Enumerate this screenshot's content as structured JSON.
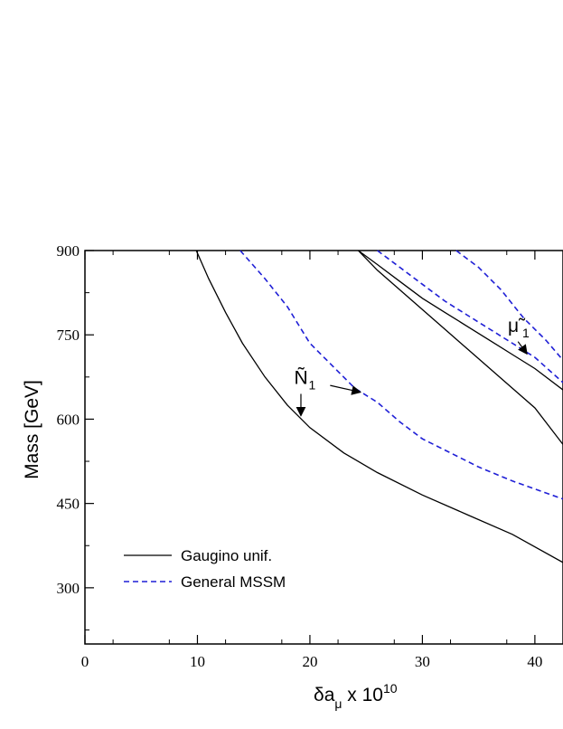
{
  "chart_data": {
    "type": "line",
    "title": "",
    "xlabel": {
      "main": "δa",
      "sub": "μ",
      "mid": " x 10",
      "sup": "10"
    },
    "ylabel": "Mass [GeV]",
    "xlim": [
      0,
      42.5
    ],
    "ylim": [
      200,
      900
    ],
    "x_ticks": [
      0,
      10,
      20,
      30,
      40
    ],
    "x_tick_labels": [
      "0",
      "10",
      "20",
      "30",
      "40"
    ],
    "y_ticks": [
      300,
      450,
      600,
      750,
      900
    ],
    "y_tick_labels": [
      "300",
      "450",
      "600",
      "750",
      "900"
    ],
    "grid": false,
    "legend_position": "lower-left",
    "series": [
      {
        "name": "Gaugino unif.",
        "color": "#000000",
        "dash": "solid",
        "points": [
          [
            9.9,
            900
          ],
          [
            11,
            850
          ],
          [
            12.5,
            790
          ],
          [
            14,
            735
          ],
          [
            16,
            675
          ],
          [
            18,
            625
          ],
          [
            20,
            585
          ],
          [
            23,
            540
          ],
          [
            26,
            505
          ],
          [
            30,
            465
          ],
          [
            34,
            430
          ],
          [
            38,
            395
          ],
          [
            42.5,
            345
          ]
        ]
      },
      {
        "name": "General MSSM",
        "color": "#1f1fd6",
        "dash": "dashed",
        "points": [
          [
            13.8,
            900
          ],
          [
            16,
            850
          ],
          [
            18,
            800
          ],
          [
            20,
            735
          ],
          [
            22,
            695
          ],
          [
            24,
            655
          ],
          [
            26,
            630
          ],
          [
            28,
            595
          ],
          [
            30,
            565
          ],
          [
            32,
            545
          ],
          [
            35,
            515
          ],
          [
            38,
            490
          ],
          [
            42.5,
            458
          ]
        ]
      },
      {
        "name": "",
        "color": "#000000",
        "dash": "solid",
        "points": [
          [
            24.3,
            900
          ],
          [
            26,
            865
          ],
          [
            28,
            830
          ],
          [
            30,
            795
          ],
          [
            32,
            760
          ],
          [
            34,
            725
          ],
          [
            36,
            690
          ],
          [
            38,
            655
          ],
          [
            40,
            620
          ],
          [
            42.5,
            555
          ]
        ]
      },
      {
        "name": "",
        "color": "#000000",
        "dash": "solid",
        "points": [
          [
            24.3,
            900
          ],
          [
            26,
            875
          ],
          [
            28,
            845
          ],
          [
            30,
            815
          ],
          [
            32,
            790
          ],
          [
            34,
            765
          ],
          [
            36,
            740
          ],
          [
            38,
            715
          ],
          [
            40,
            690
          ],
          [
            42.5,
            652
          ]
        ]
      },
      {
        "name": "",
        "color": "#1f1fd6",
        "dash": "dashed",
        "points": [
          [
            26,
            900
          ],
          [
            28,
            870
          ],
          [
            30,
            840
          ],
          [
            32,
            810
          ],
          [
            34,
            785
          ],
          [
            36,
            760
          ],
          [
            38,
            735
          ],
          [
            40,
            710
          ],
          [
            42.5,
            665
          ]
        ]
      },
      {
        "name": "",
        "color": "#1f1fd6",
        "dash": "dashed",
        "points": [
          [
            33,
            900
          ],
          [
            35,
            870
          ],
          [
            37,
            830
          ],
          [
            39,
            780
          ],
          [
            41,
            740
          ],
          [
            42.5,
            705
          ]
        ]
      }
    ],
    "annotations": [
      {
        "label": "Ñ",
        "sub": "1",
        "text_at": [
          18.6,
          663
        ],
        "arrows": [
          [
            [
              19.2,
              645
            ],
            [
              19.2,
              606
            ]
          ],
          [
            [
              21.8,
              660
            ],
            [
              24.5,
              648
            ]
          ]
        ]
      },
      {
        "label": "μ̃",
        "sub": "1",
        "text_at": [
          37.6,
          755
        ],
        "arrows": [
          [
            [
              38.5,
              738
            ],
            [
              39.3,
              716
            ]
          ]
        ]
      }
    ]
  }
}
